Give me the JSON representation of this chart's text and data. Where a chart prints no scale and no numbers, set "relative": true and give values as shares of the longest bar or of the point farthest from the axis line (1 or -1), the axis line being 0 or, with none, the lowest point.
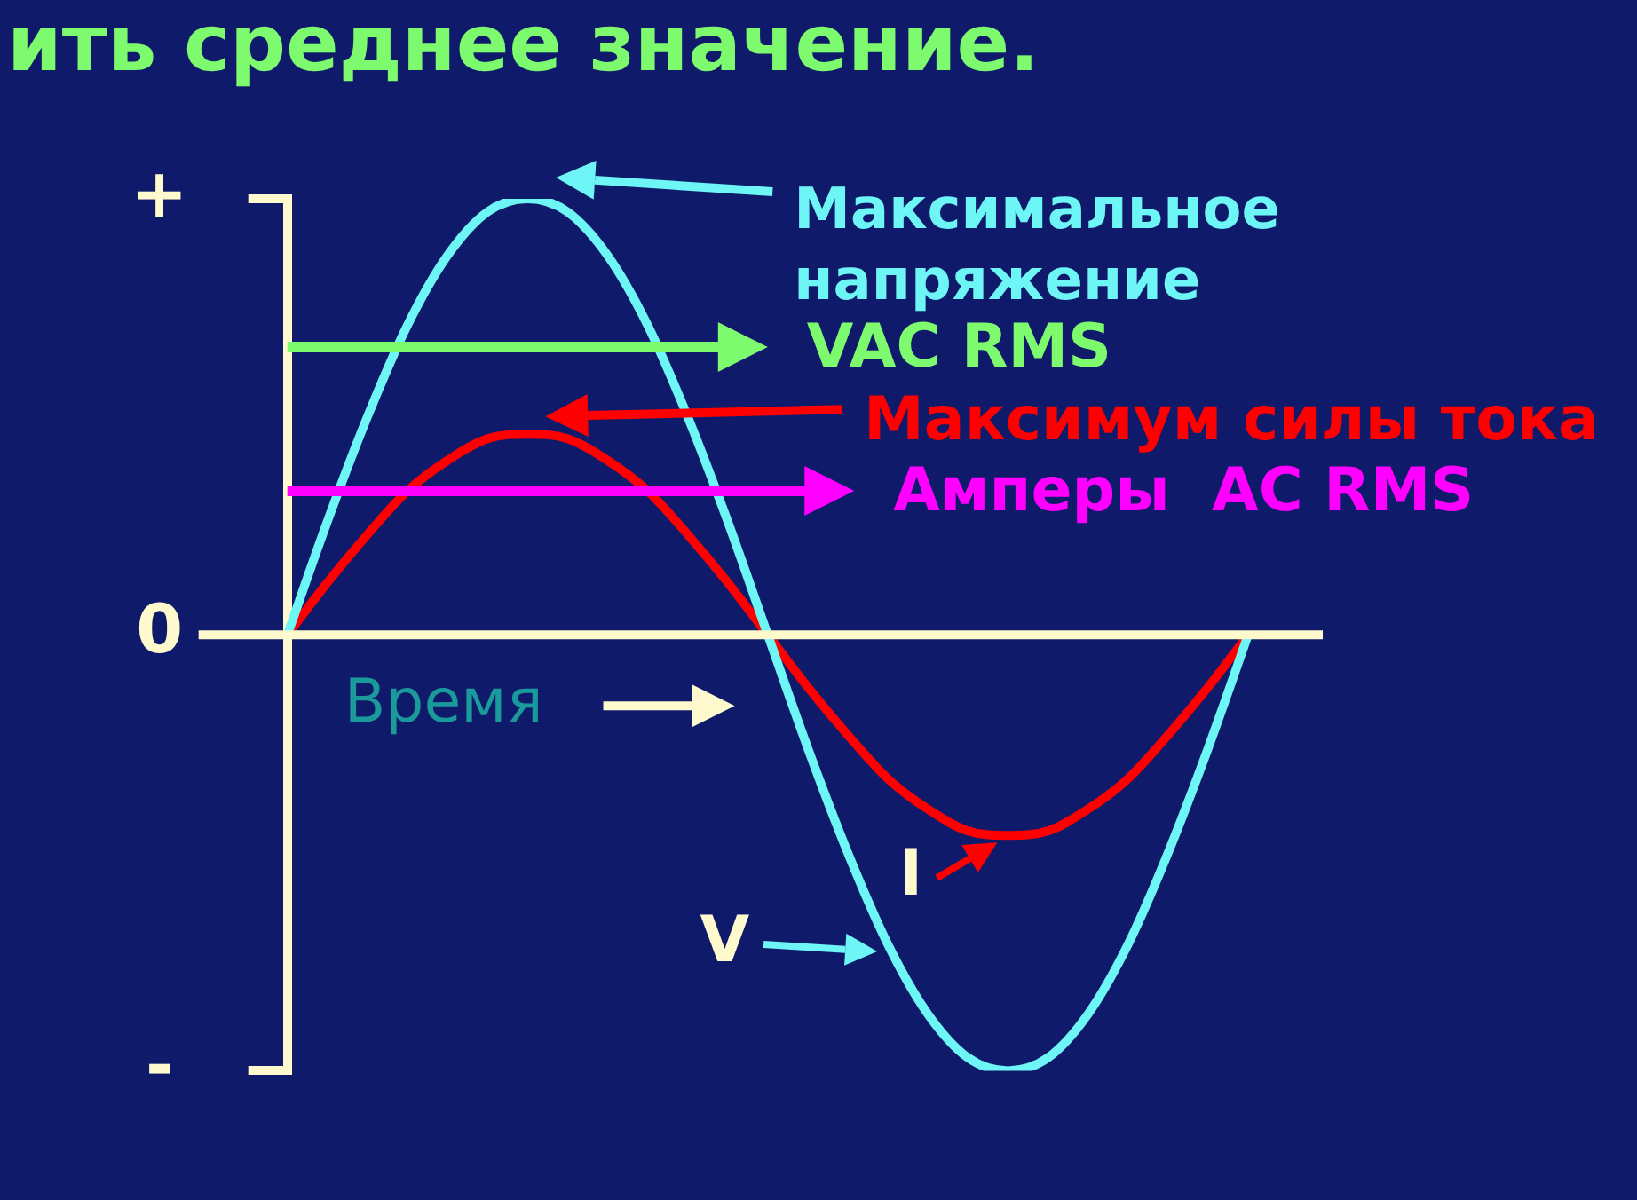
{
  "chart_data": {
    "type": "line",
    "title": "ить среднее значение.",
    "xlabel": "Время",
    "categories": [
      null,
      null,
      null,
      null,
      null,
      null,
      null,
      null,
      null,
      null,
      null,
      null,
      null,
      null,
      null,
      null,
      null,
      null,
      null,
      null,
      null,
      null,
      null,
      null,
      null
    ],
    "series": [
      {
        "name": "V",
        "color": "#6ef5f5",
        "values": [
          0,
          0.26,
          0.5,
          0.71,
          0.87,
          0.97,
          1,
          0.97,
          0.87,
          0.71,
          0.5,
          0.26,
          0,
          -0.26,
          -0.5,
          -0.71,
          -0.87,
          -0.97,
          -1,
          -0.97,
          -0.87,
          -0.71,
          -0.5,
          -0.26,
          0
        ]
      },
      {
        "name": "I",
        "color": "#ff0000",
        "values": [
          0,
          0.12,
          0.23,
          0.33,
          0.4,
          0.45,
          0.46,
          0.45,
          0.4,
          0.33,
          0.23,
          0.12,
          0,
          -0.12,
          -0.23,
          -0.33,
          -0.4,
          -0.45,
          -0.46,
          -0.45,
          -0.4,
          -0.33,
          -0.23,
          -0.12,
          0
        ]
      }
    ],
    "relative": true,
    "ref_lines": [
      {
        "axis": "y",
        "value": 0.66,
        "label": "VAC RMS",
        "color": "#7dfa6e"
      },
      {
        "axis": "y",
        "value": 0.33,
        "label": "Амперы  AC RMS",
        "color": "#ff00ff"
      },
      {
        "axis": "y",
        "value": 0,
        "color": "#fffacd"
      }
    ],
    "annotations": [
      "Максимальное напряжение",
      "Максимум силы тока",
      "+",
      "0",
      "-"
    ]
  }
}
